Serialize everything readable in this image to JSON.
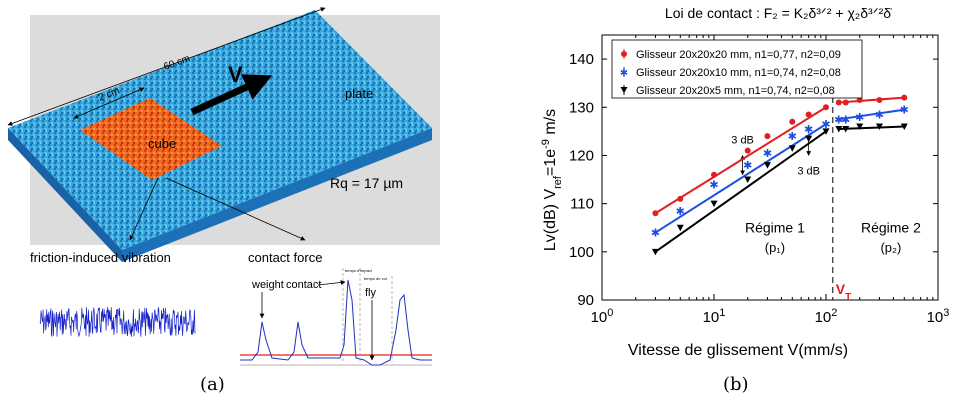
{
  "panel_a": {
    "caption": "(a)",
    "dims": {
      "long": "60 cm",
      "short": "2 cm"
    },
    "velocity": "V",
    "plate_label": "plate",
    "cube_label": "cube",
    "roughness": "Rq = 17 µm",
    "vibration_label": "friction-induced vibration",
    "force_label": "contact force",
    "signal_labels": {
      "weight": "weight",
      "contact": "contact",
      "fly": "fly"
    },
    "time_labels": {
      "impact": "temps d'impact",
      "fly_time": "temps de vol"
    },
    "colors": {
      "plate": "#2aa0dc",
      "cube": "#e8581e",
      "vibration": "#1420c8",
      "force": "#2030c0",
      "threshold": "#e02020"
    }
  },
  "panel_b": {
    "caption": "(b)",
    "title": "Loi de contact : F₂ = K₂δ³ᐟ² + χ₂δ³ᐟ²δ̇",
    "regime1": {
      "name": "Régime 1",
      "p": "(p₁)"
    },
    "regime2": {
      "name": "Régime 2",
      "p": "(p₂)"
    },
    "vt_label": "V_T",
    "annotations": [
      "3 dB",
      "3 dB"
    ]
  },
  "chart_data": {
    "type": "scatter",
    "title": "Loi de contact : F₂ = K₂δ³ᐟ² + χ₂δ³ᐟ²δ̇",
    "xlabel": "Vitesse de glissement  V(mm/s)",
    "ylabel": "Lv(dB) V_ref=1e-9 m/s",
    "xscale": "log",
    "xlim": [
      1,
      1000
    ],
    "ylim": [
      90,
      145
    ],
    "xticks": [
      "10^0",
      "10^1",
      "10^2",
      "10^3"
    ],
    "yticks": [
      90,
      100,
      110,
      120,
      130,
      140
    ],
    "grid": false,
    "legend_position": "top-left",
    "vline": 115,
    "series": [
      {
        "name": "Glisseur 20x20x20 mm, n1=0,77, n2=0,09",
        "color": "#e02020",
        "marker": "circle",
        "x": [
          3,
          5,
          10,
          20,
          30,
          50,
          70,
          100,
          130,
          150,
          200,
          300,
          500
        ],
        "y": [
          108,
          111,
          116,
          121,
          124,
          127,
          128.5,
          130,
          131,
          131,
          131.5,
          131.5,
          132
        ]
      },
      {
        "name": "Glisseur 20x20x10 mm, n1=0,74, n2=0,08",
        "color": "#1a4ee0",
        "marker": "star",
        "x": [
          3,
          5,
          10,
          20,
          30,
          50,
          70,
          100,
          130,
          150,
          200,
          300,
          500
        ],
        "y": [
          104,
          108.5,
          114,
          118,
          120.5,
          124,
          125.5,
          126.5,
          127.5,
          127.5,
          128,
          128.5,
          129.5
        ]
      },
      {
        "name": "Glisseur 20x20x5 mm, n1=0,74, n2=0,08",
        "color": "#000000",
        "marker": "triangle-down",
        "x": [
          3,
          5,
          10,
          20,
          30,
          50,
          70,
          100,
          130,
          150,
          200,
          300,
          500
        ],
        "y": [
          100,
          105,
          110,
          115,
          118,
          121.5,
          123.5,
          125,
          125.5,
          125.5,
          126,
          126,
          126
        ]
      }
    ]
  }
}
